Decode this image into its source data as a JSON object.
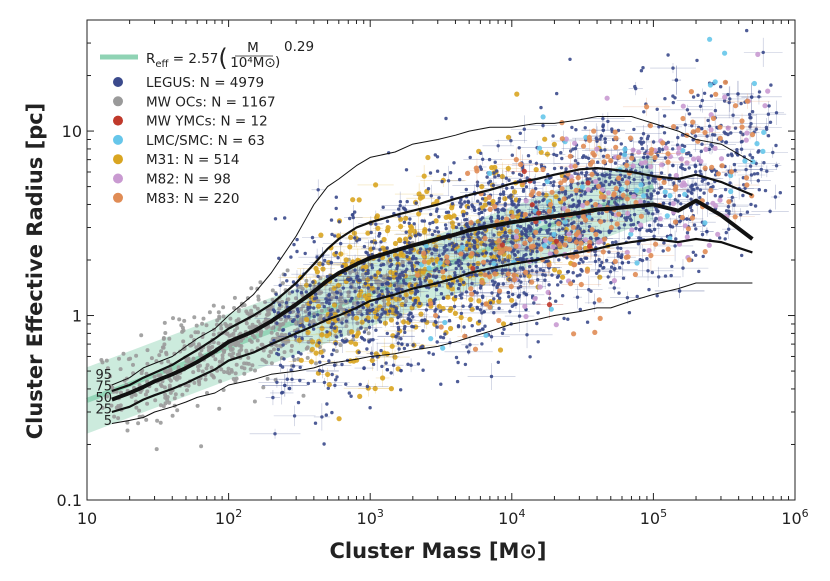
{
  "chart_data": {
    "type": "scatter",
    "title": "",
    "xlabel": "Cluster Mass [M⊙]",
    "ylabel": "Cluster Effective Radius [pc]",
    "xscale": "log",
    "yscale": "log",
    "xlim": [
      10,
      1000000
    ],
    "ylim": [
      0.1,
      40
    ],
    "x_ticks": [
      {
        "value": 10,
        "base": "10",
        "exp": ""
      },
      {
        "value": 100,
        "base": "10",
        "exp": "2"
      },
      {
        "value": 1000,
        "base": "10",
        "exp": "3"
      },
      {
        "value": 10000,
        "base": "10",
        "exp": "4"
      },
      {
        "value": 100000,
        "base": "10",
        "exp": "5"
      },
      {
        "value": 1000000,
        "base": "10",
        "exp": "6"
      }
    ],
    "y_ticks": [
      {
        "value": 0.1,
        "label": "0.1"
      },
      {
        "value": 1,
        "label": "1"
      },
      {
        "value": 10,
        "label": "10"
      }
    ],
    "legend_position": "top-left",
    "fit": {
      "label_main": "R",
      "label_sub": "eff",
      "label_eq": " = 2.57",
      "frac_num": "M",
      "frac_den": "10⁴M⊙",
      "exponent": "0.29",
      "norm": 2.57,
      "slope": 0.29,
      "pivot_mass": 10000,
      "x_range": [
        10,
        100000
      ],
      "band_dex": 0.18,
      "color": "#8fd3b4"
    },
    "series": [
      {
        "name": "LEGUS",
        "label": "LEGUS: N = 4979",
        "color": "#3b4a8c",
        "n": 4979,
        "log_m_range": [
          2.3,
          5.9
        ],
        "log_m_peak": 4.0,
        "errorbars": true
      },
      {
        "name": "MW OCs",
        "label": "MW OCs: N = 1167",
        "color": "#9a9a9a",
        "n": 1167,
        "log_m_range": [
          1.1,
          3.3
        ],
        "log_m_peak": 2.2,
        "errorbars": false
      },
      {
        "name": "MW YMCs",
        "label": "MW YMCs: N = 12",
        "color": "#c0392b",
        "n": 12,
        "log_m_range": [
          3.5,
          4.6
        ],
        "log_m_peak": 4.1,
        "errorbars": true
      },
      {
        "name": "LMC/SMC",
        "label": "LMC/SMC: N = 63",
        "color": "#66c6ea",
        "n": 63,
        "log_m_range": [
          3.3,
          5.9
        ],
        "log_m_peak": 4.6,
        "errorbars": false
      },
      {
        "name": "M31",
        "label": "M31: N = 514",
        "color": "#d9a521",
        "n": 514,
        "log_m_range": [
          2.5,
          4.7
        ],
        "log_m_peak": 3.2,
        "errorbars": true
      },
      {
        "name": "M82",
        "label": "M82: N = 98",
        "color": "#c99ad1",
        "n": 98,
        "log_m_range": [
          4.0,
          5.9
        ],
        "log_m_peak": 4.8,
        "errorbars": false
      },
      {
        "name": "M83",
        "label": "M83: N = 220",
        "color": "#e08c55",
        "n": 220,
        "log_m_range": [
          3.3,
          5.7
        ],
        "log_m_peak": 4.5,
        "errorbars": true
      }
    ],
    "percentiles": {
      "x": [
        15,
        20,
        25,
        30,
        40,
        50,
        60,
        80,
        100,
        150,
        200,
        300,
        400,
        500,
        600,
        800,
        1000,
        1500,
        2000,
        3000,
        4000,
        5000,
        7000,
        10000,
        15000,
        20000,
        30000,
        40000,
        50000,
        70000,
        100000,
        150000,
        200000,
        300000,
        500000
      ],
      "lines": [
        {
          "p": "95",
          "label": "95",
          "y": [
            0.42,
            0.46,
            0.52,
            0.55,
            0.6,
            0.68,
            0.75,
            0.85,
            1.0,
            1.3,
            1.7,
            2.7,
            4.0,
            5.0,
            5.5,
            6.5,
            7.2,
            7.7,
            8.5,
            9.0,
            9.5,
            10.0,
            10.5,
            10.5,
            11.0,
            11.0,
            11.5,
            12.0,
            12.0,
            12.0,
            11.0,
            10.0,
            9.0,
            8.5,
            6.8
          ],
          "width": 1
        },
        {
          "p": "75",
          "label": "75",
          "y": [
            0.39,
            0.42,
            0.46,
            0.49,
            0.54,
            0.6,
            0.65,
            0.75,
            0.85,
            1.0,
            1.15,
            1.5,
            1.9,
            2.3,
            2.6,
            3.0,
            3.2,
            3.5,
            3.7,
            4.0,
            4.3,
            4.5,
            4.8,
            5.2,
            5.5,
            5.8,
            6.2,
            6.3,
            6.2,
            6.0,
            5.7,
            5.5,
            5.8,
            5.3,
            4.5
          ],
          "width": 2.2
        },
        {
          "p": "50",
          "label": "50",
          "y": [
            0.35,
            0.38,
            0.41,
            0.44,
            0.48,
            0.52,
            0.56,
            0.64,
            0.72,
            0.82,
            0.93,
            1.15,
            1.35,
            1.55,
            1.7,
            1.9,
            2.05,
            2.25,
            2.4,
            2.6,
            2.75,
            2.9,
            3.05,
            3.2,
            3.35,
            3.45,
            3.6,
            3.75,
            3.8,
            3.9,
            4.0,
            3.7,
            4.2,
            3.5,
            2.6
          ],
          "width": 4
        },
        {
          "p": "25",
          "label": "25",
          "y": [
            0.3,
            0.32,
            0.35,
            0.37,
            0.4,
            0.43,
            0.46,
            0.51,
            0.57,
            0.63,
            0.7,
            0.8,
            0.88,
            0.95,
            1.0,
            1.1,
            1.2,
            1.3,
            1.4,
            1.5,
            1.6,
            1.7,
            1.8,
            1.9,
            2.0,
            2.1,
            2.2,
            2.3,
            2.4,
            2.5,
            2.6,
            2.5,
            2.6,
            2.5,
            2.2
          ],
          "width": 2.2
        },
        {
          "p": "5",
          "label": "5",
          "y": [
            0.26,
            0.27,
            0.28,
            0.3,
            0.32,
            0.34,
            0.36,
            0.38,
            0.42,
            0.45,
            0.48,
            0.5,
            0.52,
            0.55,
            0.56,
            0.58,
            0.6,
            0.62,
            0.65,
            0.68,
            0.72,
            0.76,
            0.82,
            0.9,
            0.95,
            1.0,
            1.05,
            1.1,
            1.1,
            1.2,
            1.3,
            1.4,
            1.5,
            1.5,
            1.5
          ],
          "width": 1
        }
      ]
    }
  }
}
